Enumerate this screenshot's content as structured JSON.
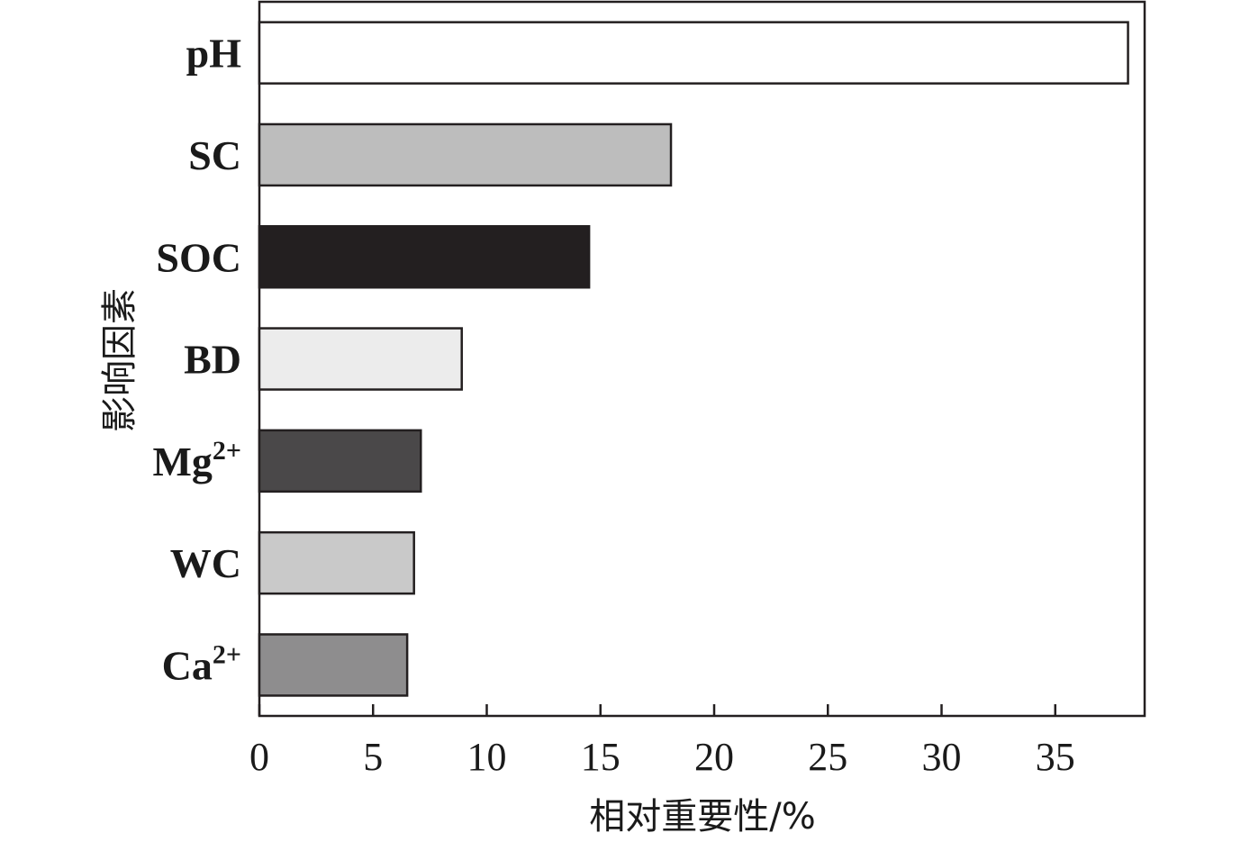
{
  "chart_data": {
    "type": "bar",
    "orientation": "horizontal",
    "categories": [
      "pH",
      "SC",
      "SOC",
      "BD",
      "Mg2+",
      "WC",
      "Ca2+"
    ],
    "category_labels": [
      {
        "base": "pH",
        "sup": ""
      },
      {
        "base": "SC",
        "sup": ""
      },
      {
        "base": "SOC",
        "sup": ""
      },
      {
        "base": "BD",
        "sup": ""
      },
      {
        "base": "Mg",
        "sup": "2+"
      },
      {
        "base": "WC",
        "sup": ""
      },
      {
        "base": "Ca",
        "sup": "2+"
      }
    ],
    "values": [
      38.2,
      18.1,
      14.5,
      8.9,
      7.1,
      6.8,
      6.5
    ],
    "colors": [
      "#ffffff",
      "#bdbdbd",
      "#231f20",
      "#ececec",
      "#4a4849",
      "#c9c9c9",
      "#8e8d8e"
    ],
    "xlabel": "相对重要性/%",
    "ylabel": "影响因素",
    "xlim": [
      0,
      39
    ],
    "xticks": [
      "0",
      "5",
      "10",
      "15",
      "20",
      "25",
      "30",
      "35"
    ],
    "grid": false,
    "legend": "none"
  }
}
